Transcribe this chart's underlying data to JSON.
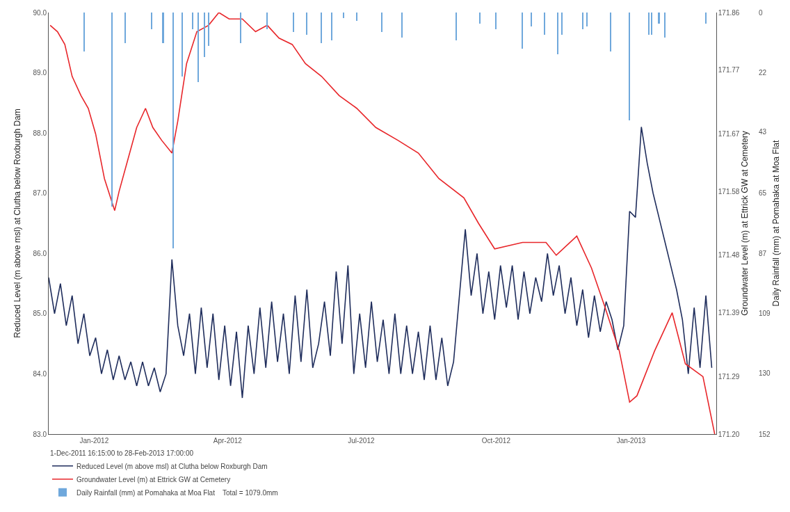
{
  "chart_data": {
    "type": "line",
    "ylabel": "Reduced Level (m above msl) at Clutha below Roxburgh Dam",
    "y2label": "Groundwater Level (m) at Ettrick GW at Cemetery",
    "y3label": "Daily Rainfall (mm) at Pomahaka at Moa Flat",
    "legend_title": "1-Dec-2011 16:15:00 to 28-Feb-2013 17:00:00",
    "legend": "bottom left",
    "marker": "none",
    "line_style": "solid",
    "xlim": [
      "2011-12-01",
      "2013-02-28"
    ],
    "xticks": [
      {
        "value": "2012-01-01",
        "label": "Jan-2012"
      },
      {
        "value": "2012-04-01",
        "label": "Apr-2012"
      },
      {
        "value": "2012-07-01",
        "label": "Jul-2012"
      },
      {
        "value": "2012-10-01",
        "label": "Oct-2012"
      },
      {
        "value": "2013-01-01",
        "label": "Jan-2013"
      }
    ],
    "ylim": [
      83,
      90
    ],
    "yticks": [
      {
        "value": 90,
        "label": "90.0"
      },
      {
        "value": 89,
        "label": "89.0"
      },
      {
        "value": 88,
        "label": "88.0"
      },
      {
        "value": 87,
        "label": "87.0"
      },
      {
        "value": 86,
        "label": "86.0"
      },
      {
        "value": 85,
        "label": "85.0"
      },
      {
        "value": 84,
        "label": "84.0"
      },
      {
        "value": 83,
        "label": "83.0"
      }
    ],
    "y2lim": [
      171.2,
      171.86
    ],
    "y2ticks": [
      171.86,
      171.77,
      171.67,
      171.58,
      171.48,
      171.39,
      171.29,
      {
        "value": 171.2,
        "label": "171.20"
      }
    ],
    "y3lim": [
      152,
      0
    ],
    "y3ticks": [
      0,
      {
        "value": 21.71,
        "label": "22"
      },
      43,
      65,
      87,
      {
        "value": 108.57,
        "label": "109"
      },
      130,
      152
    ],
    "series": [
      {
        "name": "Daily Rainfall (mm) at Pomahaka at Moa Flat    Total = 1079.0mm",
        "type": "bar",
        "axis": "y3",
        "color": "#6fa8dc",
        "x": [
          "2011-12-25",
          "2012-01-13",
          "2012-01-22",
          "2012-02-09",
          "2012-02-17",
          "2012-02-24",
          "2012-03-01",
          "2012-03-08",
          "2012-03-12",
          "2012-03-16",
          "2012-03-19",
          "2012-04-10",
          "2012-04-28",
          "2012-05-16",
          "2012-05-25",
          "2012-06-04",
          "2012-06-11",
          "2012-06-19",
          "2012-06-28",
          "2012-07-15",
          "2012-07-29",
          "2012-09-04",
          "2012-09-20",
          "2012-10-01",
          "2012-10-19",
          "2012-10-25",
          "2012-11-03",
          "2012-11-12",
          "2012-11-15",
          "2012-11-29",
          "2012-12-02",
          "2012-12-18",
          "2012-12-31",
          "2013-01-13",
          "2013-01-15",
          "2013-01-20",
          "2013-01-24",
          "2013-02-21"
        ],
        "values": [
          14,
          70,
          11,
          6,
          11,
          85,
          23,
          6,
          25,
          16,
          12,
          11,
          6,
          7,
          8,
          11,
          10,
          2,
          3,
          7,
          9,
          10,
          4,
          6,
          13,
          5,
          8,
          15,
          8,
          6,
          5,
          14,
          39,
          8,
          8,
          4,
          9,
          4
        ]
      },
      {
        "name": "Reduced Level (m above msl) at Clutha below Roxburgh Dam",
        "axis": "y",
        "color": "#1f2d5c",
        "x": [
          "2011-12-01",
          "2011-12-05",
          "2011-12-09",
          "2011-12-13",
          "2011-12-17",
          "2011-12-21",
          "2011-12-25",
          "2011-12-29",
          "2012-01-02",
          "2012-01-06",
          "2012-01-10",
          "2012-01-14",
          "2012-01-18",
          "2012-01-22",
          "2012-01-26",
          "2012-01-30",
          "2012-02-03",
          "2012-02-07",
          "2012-02-11",
          "2012-02-15",
          "2012-02-19",
          "2012-02-23",
          "2012-02-27",
          "2012-03-02",
          "2012-03-06",
          "2012-03-10",
          "2012-03-14",
          "2012-03-18",
          "2012-03-22",
          "2012-03-26",
          "2012-03-30",
          "2012-04-03",
          "2012-04-07",
          "2012-04-11",
          "2012-04-15",
          "2012-04-19",
          "2012-04-23",
          "2012-04-27",
          "2012-05-01",
          "2012-05-05",
          "2012-05-09",
          "2012-05-13",
          "2012-05-17",
          "2012-05-21",
          "2012-05-25",
          "2012-05-29",
          "2012-06-02",
          "2012-06-06",
          "2012-06-10",
          "2012-06-14",
          "2012-06-18",
          "2012-06-22",
          "2012-06-26",
          "2012-06-30",
          "2012-07-04",
          "2012-07-08",
          "2012-07-12",
          "2012-07-16",
          "2012-07-20",
          "2012-07-24",
          "2012-07-28",
          "2012-08-01",
          "2012-08-05",
          "2012-08-09",
          "2012-08-13",
          "2012-08-17",
          "2012-08-21",
          "2012-08-25",
          "2012-08-29",
          "2012-09-02",
          "2012-09-06",
          "2012-09-10",
          "2012-09-14",
          "2012-09-18",
          "2012-09-22",
          "2012-09-26",
          "2012-09-30",
          "2012-10-04",
          "2012-10-08",
          "2012-10-12",
          "2012-10-16",
          "2012-10-20",
          "2012-10-24",
          "2012-10-28",
          "2012-11-01",
          "2012-11-05",
          "2012-11-09",
          "2012-11-13",
          "2012-11-17",
          "2012-11-21",
          "2012-11-25",
          "2012-11-29",
          "2012-12-03",
          "2012-12-07",
          "2012-12-11",
          "2012-12-15",
          "2012-12-19",
          "2012-12-23",
          "2012-12-27",
          "2012-12-31",
          "2013-01-04",
          "2013-01-08",
          "2013-01-12",
          "2013-01-16",
          "2013-01-20",
          "2013-01-24",
          "2013-01-28",
          "2013-02-01",
          "2013-02-05",
          "2013-02-09",
          "2013-02-13",
          "2013-02-17",
          "2013-02-21",
          "2013-02-25"
        ],
        "values": [
          85.6,
          85.0,
          85.5,
          84.8,
          85.3,
          84.5,
          85.0,
          84.3,
          84.6,
          84.0,
          84.4,
          83.9,
          84.3,
          83.9,
          84.2,
          83.8,
          84.2,
          83.8,
          84.1,
          83.7,
          84.0,
          85.9,
          84.8,
          84.3,
          85.0,
          84.0,
          85.1,
          84.1,
          85.0,
          83.9,
          84.8,
          83.8,
          84.7,
          83.6,
          84.8,
          84.0,
          85.1,
          84.1,
          85.2,
          84.2,
          85.0,
          84.0,
          85.3,
          84.2,
          85.4,
          84.1,
          84.5,
          85.2,
          84.3,
          85.7,
          84.5,
          85.8,
          84.0,
          85.0,
          84.1,
          85.2,
          84.2,
          84.9,
          84.0,
          85.0,
          84.0,
          84.8,
          84.0,
          84.7,
          83.9,
          84.8,
          83.9,
          84.6,
          83.8,
          84.2,
          85.3,
          86.4,
          85.3,
          86.0,
          85.0,
          85.7,
          84.9,
          85.8,
          85.1,
          85.8,
          84.9,
          85.7,
          85.0,
          85.6,
          85.2,
          86.0,
          85.3,
          85.8,
          85.0,
          85.6,
          84.8,
          85.4,
          84.6,
          85.3,
          84.7,
          85.2,
          84.9,
          84.4,
          84.8,
          86.7,
          86.6,
          88.1,
          87.5,
          87.0,
          86.6,
          86.2,
          85.8,
          85.4,
          84.9,
          84.0,
          85.1,
          84.1,
          85.3,
          84.1
        ]
      },
      {
        "name": "Groundwater Level (m) at Ettrick GW at Cemetery",
        "axis": "y2",
        "color": "#e8262a",
        "x": [
          "2011-12-02",
          "2011-12-07",
          "2011-12-12",
          "2011-12-17",
          "2011-12-23",
          "2011-12-28",
          "2012-01-02",
          "2012-01-08",
          "2012-01-15",
          "2012-01-18",
          "2012-01-24",
          "2012-01-30",
          "2012-02-05",
          "2012-02-10",
          "2012-02-16",
          "2012-02-23",
          "2012-02-27",
          "2012-03-04",
          "2012-03-11",
          "2012-03-19",
          "2012-03-26",
          "2012-04-02",
          "2012-04-11",
          "2012-04-20",
          "2012-04-28",
          "2012-05-06",
          "2012-05-15",
          "2012-05-24",
          "2012-06-04",
          "2012-06-16",
          "2012-06-28",
          "2012-07-11",
          "2012-07-26",
          "2012-08-09",
          "2012-08-23",
          "2012-09-09",
          "2012-09-19",
          "2012-09-30",
          "2012-10-19",
          "2012-11-04",
          "2012-11-11",
          "2012-11-25",
          "2012-12-05",
          "2012-12-14",
          "2012-12-24",
          "2012-12-31",
          "2013-01-05",
          "2013-01-17",
          "2013-01-29",
          "2013-02-07",
          "2013-02-19",
          "2013-02-27"
        ],
        "values": [
          171.84,
          171.83,
          171.81,
          171.76,
          171.73,
          171.71,
          171.67,
          171.6,
          171.55,
          171.58,
          171.63,
          171.68,
          171.71,
          171.68,
          171.66,
          171.64,
          171.69,
          171.78,
          171.83,
          171.84,
          171.86,
          171.85,
          171.85,
          171.83,
          171.84,
          171.82,
          171.81,
          171.78,
          171.76,
          171.73,
          171.71,
          171.68,
          171.66,
          171.64,
          171.6,
          171.57,
          171.53,
          171.49,
          171.5,
          171.5,
          171.48,
          171.51,
          171.46,
          171.4,
          171.33,
          171.25,
          171.26,
          171.33,
          171.39,
          171.31,
          171.29,
          171.2
        ]
      }
    ]
  }
}
